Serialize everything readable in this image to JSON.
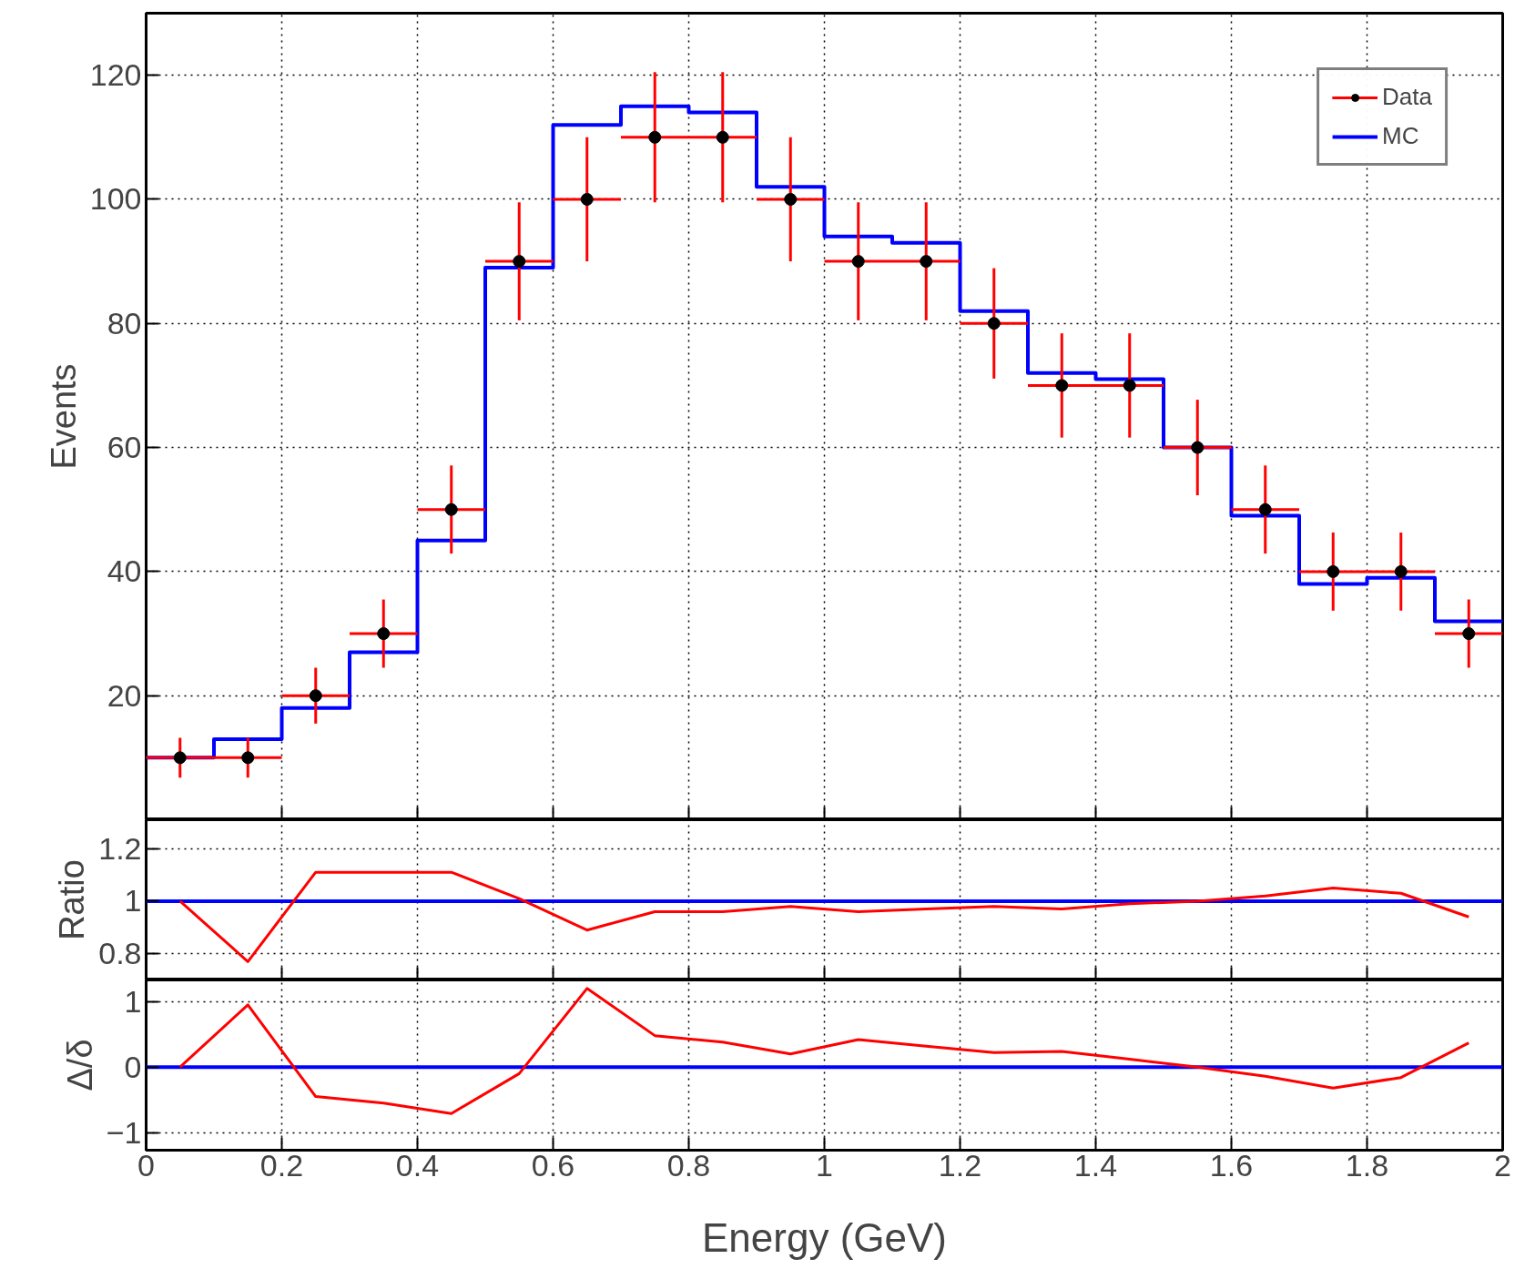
{
  "chart_data": [
    {
      "type": "step",
      "ylabel": "Events",
      "x": [
        0.05,
        0.15,
        0.25,
        0.35,
        0.45,
        0.55,
        0.65,
        0.75,
        0.85,
        0.95,
        1.05,
        1.15,
        1.25,
        1.35,
        1.45,
        1.55,
        1.65,
        1.75,
        1.85,
        1.95
      ],
      "series": [
        {
          "name": "Data",
          "type": "scatter",
          "color": "#000000",
          "marker": "circle",
          "values": [
            10,
            10,
            20,
            30,
            50,
            90,
            100,
            110,
            110,
            100,
            90,
            90,
            80,
            70,
            70,
            60,
            50,
            40,
            40,
            30
          ],
          "errors": [
            3.2,
            3.2,
            4.5,
            5.5,
            7.1,
            9.5,
            10,
            10.5,
            10.5,
            10,
            9.5,
            9.5,
            8.9,
            8.4,
            8.4,
            7.7,
            7.1,
            6.3,
            6.3,
            5.5
          ],
          "xerrors": [
            0.05,
            0.05,
            0.05,
            0.05,
            0.05,
            0.05,
            0.05,
            0.05,
            0.05,
            0.05,
            0.05,
            0.05,
            0.05,
            0.05,
            0.05,
            0.05,
            0.05,
            0.05,
            0.05,
            0.05
          ]
        },
        {
          "name": "MC",
          "type": "step",
          "color": "#0000ff",
          "x": [
            0,
            0.1,
            0.2,
            0.3,
            0.4,
            0.5,
            0.6,
            0.7,
            0.8,
            0.9,
            1.0,
            1.1,
            1.2,
            1.3,
            1.4,
            1.5,
            1.6,
            1.7,
            1.8,
            1.9,
            2.0
          ],
          "values": [
            10,
            13,
            18,
            27,
            45,
            89,
            112,
            115,
            114,
            102,
            94,
            93,
            82,
            72,
            71,
            60,
            49,
            38,
            39,
            32,
            32
          ]
        }
      ],
      "xlim": [
        0,
        2
      ],
      "xticks": [
        0,
        0.2,
        0.4,
        0.6,
        0.8,
        1,
        1.2,
        1.4,
        1.6,
        1.8,
        2
      ],
      "ylim": [
        0,
        130
      ],
      "yticks": [
        20,
        40,
        60,
        80,
        100,
        120
      ],
      "grid": true,
      "legend": "top right",
      "tick_labels": "y"
    },
    {
      "type": "line",
      "ylabel": "Ratio",
      "x": [
        0.05,
        0.15,
        0.25,
        0.35,
        0.45,
        0.55,
        0.65,
        0.75,
        0.85,
        0.95,
        1.05,
        1.15,
        1.25,
        1.35,
        1.45,
        1.55,
        1.65,
        1.75,
        1.85,
        1.95
      ],
      "series": [
        {
          "color": "#ff0000",
          "values": [
            1.0,
            0.77,
            1.11,
            1.11,
            1.11,
            1.01,
            0.89,
            0.96,
            0.96,
            0.98,
            0.96,
            0.97,
            0.98,
            0.97,
            0.99,
            1.0,
            1.02,
            1.05,
            1.03,
            0.94
          ]
        }
      ],
      "xlim": [
        0,
        2
      ],
      "xticks": [
        0,
        0.2,
        0.4,
        0.6,
        0.8,
        1,
        1.2,
        1.4,
        1.6,
        1.8,
        2
      ],
      "ylim": [
        0.7,
        1.31
      ],
      "yticks": [
        0.8,
        1,
        1.2
      ],
      "ref_lines": [
        {
          "axis": "y",
          "value": 1,
          "color": "#0000ff"
        }
      ],
      "grid": true,
      "tick_labels": "y"
    },
    {
      "type": "line",
      "ylabel": "Δ/δ",
      "xlabel": "Energy (GeV)",
      "x": [
        0.05,
        0.15,
        0.25,
        0.35,
        0.45,
        0.55,
        0.65,
        0.75,
        0.85,
        0.95,
        1.05,
        1.15,
        1.25,
        1.35,
        1.45,
        1.55,
        1.65,
        1.75,
        1.85,
        1.95
      ],
      "series": [
        {
          "color": "#ff0000",
          "values": [
            0,
            0.95,
            -0.45,
            -0.55,
            -0.71,
            -0.1,
            1.2,
            0.48,
            0.38,
            0.2,
            0.42,
            0.32,
            0.22,
            0.24,
            0.12,
            0,
            -0.14,
            -0.32,
            -0.16,
            0.37
          ]
        }
      ],
      "xlim": [
        0,
        2
      ],
      "xticks": [
        0,
        {
          "value": 0.2,
          "label": "0.2"
        },
        {
          "value": 0.4,
          "label": "0.4"
        },
        {
          "value": 0.6,
          "label": "0.6"
        },
        {
          "value": 0.8,
          "label": "0.8"
        },
        1,
        {
          "value": 1.2,
          "label": "1.2"
        },
        {
          "value": 1.4,
          "label": "1.4"
        },
        {
          "value": 1.6,
          "label": "1.6"
        },
        {
          "value": 1.8,
          "label": "1.8"
        },
        2
      ],
      "ylim": [
        -1.27,
        1.33
      ],
      "yticks": [
        {
          "value": -1,
          "label": "−1"
        },
        0,
        1
      ],
      "ref_lines": [
        {
          "axis": "y",
          "value": 0,
          "color": "#0000ff"
        }
      ],
      "grid": true
    }
  ]
}
